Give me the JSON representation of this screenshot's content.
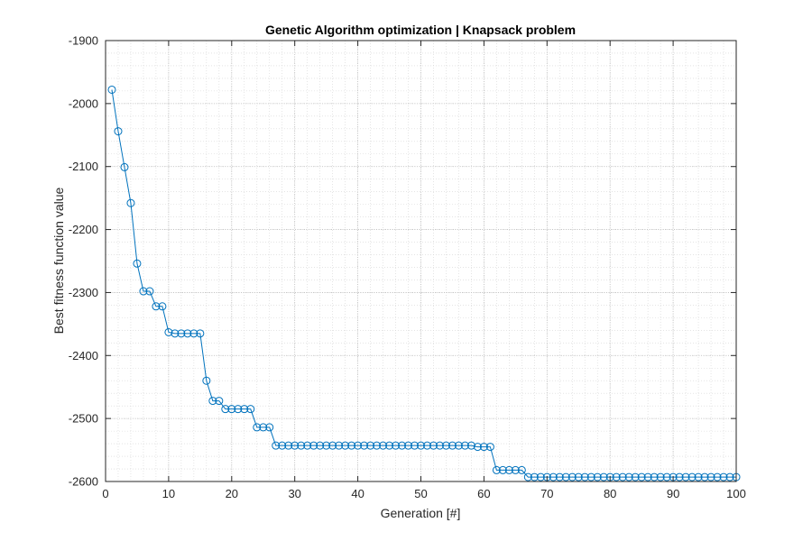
{
  "chart_data": {
    "type": "line",
    "title": "Genetic Algorithm optimization | Knapsack problem",
    "xlabel": "Generation [#]",
    "ylabel": "Best fitness function value",
    "xlim": [
      0,
      100
    ],
    "ylim": [
      -2600,
      -1900
    ],
    "xticks": [
      0,
      10,
      20,
      30,
      40,
      50,
      60,
      70,
      80,
      90,
      100
    ],
    "yticks": [
      -1900,
      -2000,
      -2100,
      -2200,
      -2300,
      -2400,
      -2500,
      -2600
    ],
    "grid": true,
    "minor_grid": true,
    "marker": "circle",
    "line_color": "#0072BD",
    "series": [
      {
        "x": [
          1,
          2,
          3,
          4,
          5,
          6,
          7,
          8,
          9,
          10,
          11,
          12,
          13,
          14,
          15,
          16,
          17,
          18,
          19,
          20,
          21,
          22,
          23,
          24,
          25,
          26,
          27,
          28,
          29,
          30,
          31,
          32,
          33,
          34,
          35,
          36,
          37,
          38,
          39,
          40,
          41,
          42,
          43,
          44,
          45,
          46,
          47,
          48,
          49,
          50,
          51,
          52,
          53,
          54,
          55,
          56,
          57,
          58,
          59,
          60,
          61,
          62,
          63,
          64,
          65,
          66,
          67,
          68,
          69,
          70,
          71,
          72,
          73,
          74,
          75,
          76,
          77,
          78,
          79,
          80,
          81,
          82,
          83,
          84,
          85,
          86,
          87,
          88,
          89,
          90,
          91,
          92,
          93,
          94,
          95,
          96,
          97,
          98,
          99,
          100
        ],
        "values": [
          -1978,
          -2044,
          -2101,
          -2158,
          -2254,
          -2298,
          -2298,
          -2322,
          -2322,
          -2363,
          -2365,
          -2365,
          -2365,
          -2365,
          -2365,
          -2440,
          -2472,
          -2472,
          -2485,
          -2485,
          -2485,
          -2485,
          -2485,
          -2514,
          -2514,
          -2514,
          -2543,
          -2543,
          -2543,
          -2543,
          -2543,
          -2543,
          -2543,
          -2543,
          -2543,
          -2543,
          -2543,
          -2543,
          -2543,
          -2543,
          -2543,
          -2543,
          -2543,
          -2543,
          -2543,
          -2543,
          -2543,
          -2543,
          -2543,
          -2543,
          -2543,
          -2543,
          -2543,
          -2543,
          -2543,
          -2543,
          -2543,
          -2543,
          -2545,
          -2545,
          -2545,
          -2582,
          -2582,
          -2582,
          -2582,
          -2582,
          -2593,
          -2593,
          -2593,
          -2593,
          -2593,
          -2593,
          -2593,
          -2593,
          -2593,
          -2593,
          -2593,
          -2593,
          -2593,
          -2593,
          -2593,
          -2593,
          -2593,
          -2593,
          -2593,
          -2593,
          -2593,
          -2593,
          -2593,
          -2593,
          -2593,
          -2593,
          -2593,
          -2593,
          -2593,
          -2593,
          -2593,
          -2593,
          -2593,
          -2593
        ]
      }
    ]
  }
}
